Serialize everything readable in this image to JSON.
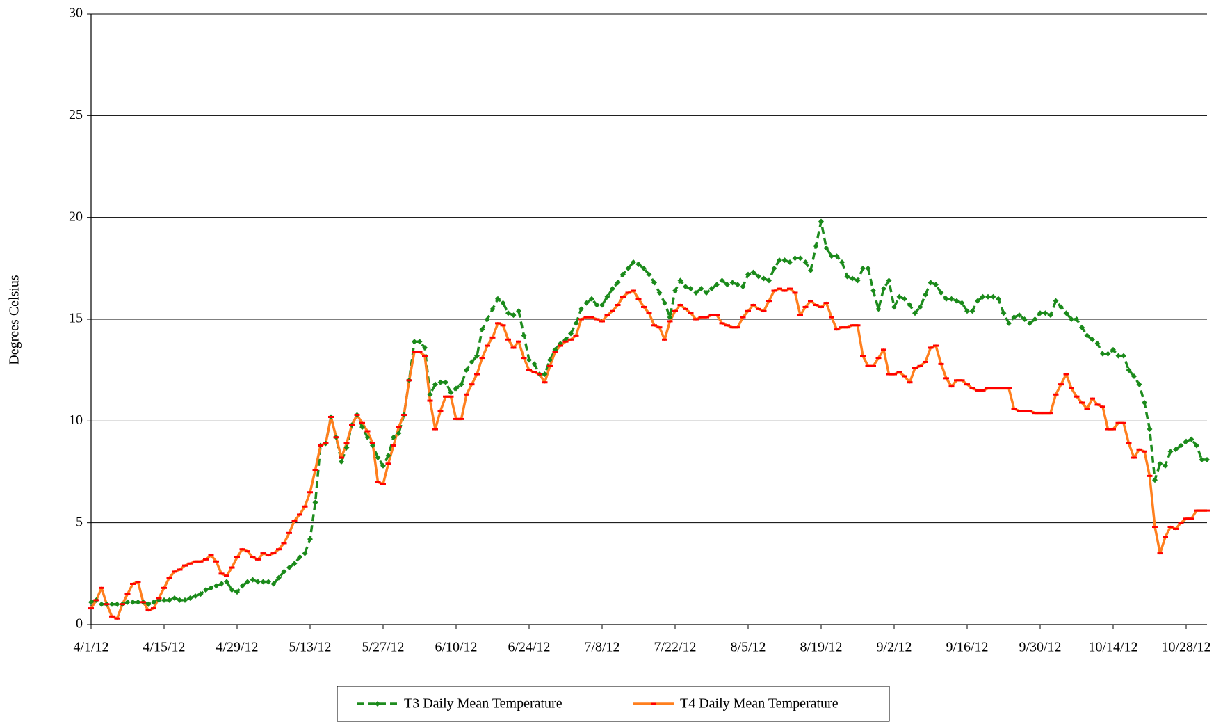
{
  "chart_data": {
    "type": "line",
    "y_label": "Degrees Celsius",
    "ylim": [
      0,
      30
    ],
    "yticks": [
      0,
      5,
      10,
      15,
      20,
      25,
      30
    ],
    "grid": true,
    "legend": "bottom",
    "categories": [
      "4/1/12",
      null,
      null,
      null,
      null,
      null,
      null,
      null,
      null,
      null,
      null,
      null,
      null,
      null,
      "4/15/12",
      null,
      null,
      null,
      null,
      null,
      null,
      null,
      null,
      null,
      null,
      null,
      null,
      null,
      "4/29/12",
      null,
      null,
      null,
      null,
      null,
      null,
      null,
      null,
      null,
      null,
      null,
      null,
      null,
      "5/13/12",
      null,
      null,
      null,
      null,
      null,
      null,
      null,
      null,
      null,
      null,
      null,
      null,
      null,
      "5/27/12",
      null,
      null,
      null,
      null,
      null,
      null,
      null,
      null,
      null,
      null,
      null,
      null,
      null,
      "6/10/12",
      null,
      null,
      null,
      null,
      null,
      null,
      null,
      null,
      null,
      null,
      null,
      null,
      null,
      "6/24/12",
      null,
      null,
      null,
      null,
      null,
      null,
      null,
      null,
      null,
      null,
      null,
      null,
      null,
      "7/8/12",
      null,
      null,
      null,
      null,
      null,
      null,
      null,
      null,
      null,
      null,
      null,
      null,
      null,
      "7/22/12",
      null,
      null,
      null,
      null,
      null,
      null,
      null,
      null,
      null,
      null,
      null,
      null,
      null,
      "8/5/12",
      null,
      null,
      null,
      null,
      null,
      null,
      null,
      null,
      null,
      null,
      null,
      null,
      null,
      "8/19/12",
      null,
      null,
      null,
      null,
      null,
      null,
      null,
      null,
      null,
      null,
      null,
      null,
      null,
      "9/2/12",
      null,
      null,
      null,
      null,
      null,
      null,
      null,
      null,
      null,
      null,
      null,
      null,
      null,
      "9/16/12",
      null,
      null,
      null,
      null,
      null,
      null,
      null,
      null,
      null,
      null,
      null,
      null,
      null,
      "9/30/12",
      null,
      null,
      null,
      null,
      null,
      null,
      null,
      null,
      null,
      null,
      null,
      null,
      null,
      "10/14/12",
      null,
      null,
      null,
      null,
      null,
      null,
      null,
      null,
      null,
      null,
      null,
      null,
      null,
      "10/28/12",
      null,
      null,
      null,
      null
    ],
    "series": [
      {
        "name": "T3 Daily Mean Temperature",
        "color": "#1e8c1e",
        "marker_color": "#1a8a1a",
        "marker": "diamond",
        "line_style": "dashed",
        "values": [
          1.1,
          1.2,
          1.0,
          1.0,
          1.0,
          1.0,
          1.0,
          1.1,
          1.1,
          1.1,
          1.1,
          1.0,
          1.1,
          1.2,
          1.2,
          1.2,
          1.3,
          1.2,
          1.2,
          1.3,
          1.4,
          1.5,
          1.7,
          1.8,
          1.9,
          2.0,
          2.1,
          1.7,
          1.6,
          1.9,
          2.1,
          2.2,
          2.1,
          2.1,
          2.1,
          2.0,
          2.3,
          2.6,
          2.8,
          3.0,
          3.3,
          3.5,
          4.2,
          6.0,
          8.8,
          8.9,
          10.2,
          9.2,
          8.0,
          8.7,
          9.8,
          10.3,
          9.7,
          9.2,
          8.8,
          8.2,
          7.8,
          8.3,
          9.2,
          9.4,
          10.3,
          12.0,
          13.9,
          13.9,
          13.6,
          11.3,
          11.8,
          11.9,
          11.9,
          11.4,
          11.6,
          11.8,
          12.5,
          12.9,
          13.2,
          14.5,
          15.0,
          15.5,
          16.0,
          15.8,
          15.3,
          15.2,
          15.4,
          14.2,
          13.0,
          12.8,
          12.3,
          12.3,
          13.0,
          13.5,
          13.8,
          14.0,
          14.3,
          14.8,
          15.5,
          15.8,
          16.0,
          15.7,
          15.7,
          16.1,
          16.5,
          16.8,
          17.2,
          17.5,
          17.8,
          17.7,
          17.5,
          17.2,
          16.8,
          16.3,
          15.8,
          15.1,
          16.4,
          16.9,
          16.6,
          16.5,
          16.3,
          16.5,
          16.3,
          16.5,
          16.7,
          16.9,
          16.7,
          16.8,
          16.7,
          16.6,
          17.2,
          17.3,
          17.1,
          17.0,
          16.9,
          17.5,
          17.9,
          17.9,
          17.8,
          18.0,
          18.0,
          17.8,
          17.4,
          18.6,
          19.8,
          18.5,
          18.1,
          18.1,
          17.8,
          17.1,
          17.0,
          16.9,
          17.5,
          17.5,
          16.4,
          15.5,
          16.5,
          16.9,
          15.6,
          16.1,
          16.0,
          15.7,
          15.3,
          15.6,
          16.2,
          16.8,
          16.7,
          16.3,
          16.0,
          16.0,
          15.9,
          15.8,
          15.4,
          15.4,
          15.9,
          16.1,
          16.1,
          16.1,
          16.0,
          15.3,
          14.8,
          15.1,
          15.2,
          15.0,
          14.8,
          15.0,
          15.3,
          15.3,
          15.2,
          15.9,
          15.6,
          15.3,
          15.0,
          15.0,
          14.6,
          14.2,
          14.0,
          13.8,
          13.3,
          13.3,
          13.5,
          13.2,
          13.2,
          12.5,
          12.2,
          11.8,
          10.9,
          9.6,
          7.1,
          7.9,
          7.8,
          8.5,
          8.6,
          8.8,
          9.0,
          9.1,
          8.8,
          8.1,
          8.1
        ]
      },
      {
        "name": "T4 Daily Mean Temperature",
        "color": "#ff7f1e",
        "marker_color": "#ff0000",
        "marker": "dash",
        "line_style": "solid",
        "values": [
          0.8,
          1.2,
          1.8,
          1.0,
          0.4,
          0.3,
          1.0,
          1.5,
          2.0,
          2.1,
          1.1,
          0.7,
          0.8,
          1.3,
          1.8,
          2.3,
          2.6,
          2.7,
          2.9,
          3.0,
          3.1,
          3.1,
          3.2,
          3.4,
          3.1,
          2.5,
          2.4,
          2.8,
          3.3,
          3.7,
          3.6,
          3.3,
          3.2,
          3.5,
          3.4,
          3.5,
          3.7,
          4.0,
          4.5,
          5.1,
          5.4,
          5.8,
          6.5,
          7.6,
          8.8,
          8.9,
          10.2,
          9.2,
          8.2,
          8.9,
          9.8,
          10.3,
          9.9,
          9.5,
          8.9,
          7.0,
          6.9,
          7.9,
          8.8,
          9.7,
          10.3,
          12.0,
          13.4,
          13.4,
          13.2,
          11.0,
          9.6,
          10.5,
          11.2,
          11.2,
          10.1,
          10.1,
          11.3,
          11.8,
          12.3,
          13.1,
          13.7,
          14.1,
          14.8,
          14.7,
          14.0,
          13.6,
          13.9,
          13.1,
          12.5,
          12.4,
          12.3,
          11.9,
          12.7,
          13.4,
          13.7,
          13.9,
          14.0,
          14.2,
          15.0,
          15.1,
          15.1,
          15.0,
          14.9,
          15.2,
          15.4,
          15.7,
          16.1,
          16.3,
          16.4,
          16.0,
          15.6,
          15.3,
          14.7,
          14.6,
          14.0,
          14.9,
          15.4,
          15.7,
          15.5,
          15.3,
          15.0,
          15.1,
          15.1,
          15.2,
          15.2,
          14.8,
          14.7,
          14.6,
          14.6,
          15.1,
          15.4,
          15.7,
          15.5,
          15.4,
          15.9,
          16.4,
          16.5,
          16.4,
          16.5,
          16.3,
          15.2,
          15.6,
          15.9,
          15.7,
          15.6,
          15.8,
          15.1,
          14.5,
          14.6,
          14.6,
          14.7,
          14.7,
          13.2,
          12.7,
          12.7,
          13.1,
          13.5,
          12.3,
          12.3,
          12.4,
          12.2,
          11.9,
          12.6,
          12.7,
          12.9,
          13.6,
          13.7,
          12.8,
          12.1,
          11.7,
          12.0,
          12.0,
          11.8,
          11.6,
          11.5,
          11.5,
          11.6,
          11.6,
          11.6,
          11.6,
          11.6,
          10.6,
          10.5,
          10.5,
          10.5,
          10.4,
          10.4,
          10.4,
          10.4,
          11.3,
          11.8,
          12.3,
          11.6,
          11.2,
          10.9,
          10.6,
          11.1,
          10.8,
          10.7,
          9.6,
          9.6,
          9.9,
          9.9,
          8.9,
          8.2,
          8.6,
          8.5,
          7.3,
          4.8,
          3.5,
          4.3,
          4.8,
          4.7,
          5.0,
          5.2,
          5.2,
          5.6,
          5.6,
          5.6
        ]
      }
    ]
  }
}
